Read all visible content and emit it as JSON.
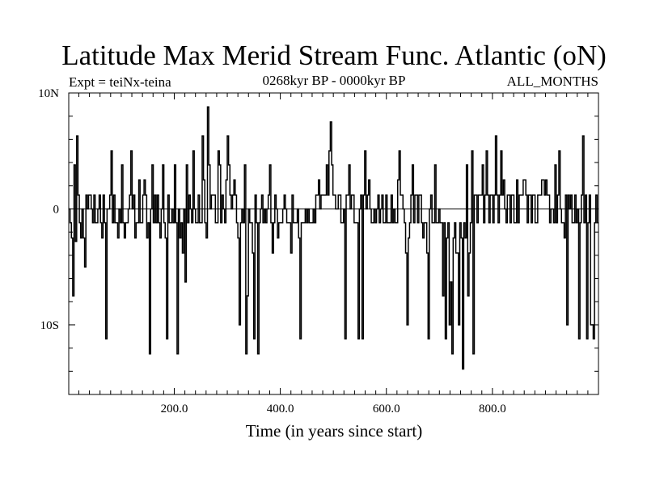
{
  "chart_data": {
    "type": "line",
    "title": "Latitude Max Merid Stream Func. Atlantic (oN)",
    "subtitle_left": "Expt = teiNx-teina",
    "subtitle_center": "0268kyr BP - 0000kyr BP",
    "subtitle_right": "ALL_MONTHS",
    "xlabel": "Time (in years since start)",
    "ylabel": "",
    "xlim": [
      1,
      1000
    ],
    "ylim": [
      -16,
      10
    ],
    "x_ticks": [
      200,
      400,
      600,
      800
    ],
    "x_tick_labels": [
      "200.0",
      "400.0",
      "600.0",
      "800.0"
    ],
    "y_ticks": [
      10,
      0,
      -10
    ],
    "y_tick_labels": [
      "10N",
      "0",
      "10S"
    ],
    "grid": false,
    "line_color": "#000000",
    "series": [
      {
        "values": [
          0,
          -1.2,
          -2.5,
          -7.5,
          3.8,
          -2.8,
          6.3,
          1.2,
          -1.2,
          -2.5,
          0,
          -2.5,
          -5,
          1.2,
          0,
          1.2,
          1.2,
          0,
          -1.2,
          1.2,
          -1.2,
          -1.2,
          0,
          1.2,
          -1.2,
          -2.5,
          1.2,
          -1.2,
          -11.2,
          0,
          0,
          1.2,
          5,
          -1.2,
          1.2,
          -1.2,
          -1.2,
          -2.5,
          0,
          -1.2,
          3.8,
          -1.2,
          -2.5,
          -1.2,
          -1.2,
          0,
          1.2,
          5,
          0,
          1.2,
          -2.5,
          -1.2,
          -1.2,
          2.5,
          -1.2,
          -1.2,
          1.2,
          2.5,
          1.2,
          -2.5,
          -1.2,
          -12.5,
          0,
          3.8,
          -1.2,
          1.2,
          -1.2,
          1.2,
          -1.2,
          -2.5,
          0,
          3.8,
          -1.2,
          -2.5,
          -11.2,
          1.2,
          -1.2,
          -1.2,
          0,
          -1.2,
          3.8,
          -1.2,
          -12.5,
          0,
          -2.5,
          -1.2,
          -3.8,
          0,
          -6.3,
          3.8,
          -1.2,
          1.2,
          0,
          -1.2,
          5,
          0,
          -1.2,
          -1.2,
          1.2,
          -1.2,
          -1.2,
          6.3,
          2.5,
          -1.2,
          -2.5,
          8.8,
          3.8,
          0,
          1.2,
          1.2,
          1.2,
          -1.2,
          -1.2,
          5,
          3.8,
          -1.2,
          1.2,
          0,
          -1.2,
          2.5,
          6.3,
          3.8,
          1.2,
          0,
          1.2,
          2.5,
          1.2,
          -1.2,
          -2.5,
          -10,
          -1.2,
          0,
          -1.2,
          3.8,
          -12.5,
          -7.5,
          0,
          -1.2,
          -1.2,
          -3.8,
          -11.2,
          1.2,
          -1.2,
          -12.5,
          -1.2,
          0,
          1.2,
          -1.2,
          0,
          -1.2,
          0,
          1.2,
          3.8,
          -1.2,
          -3.8,
          -1.2,
          1.2,
          0,
          -2.5,
          -1.2,
          -1.2,
          -1.2,
          0,
          1.2,
          0,
          -1.2,
          -1.2,
          -1.2,
          -3.8,
          1.2,
          -1.2,
          -1.2,
          -1.2,
          0,
          -2.5,
          -11.2,
          -1.2,
          -1.2,
          -1.2,
          0,
          -1.2,
          0,
          -1.2,
          -1.2,
          -1.2,
          0,
          -1.2,
          1.2,
          1.2,
          2.5,
          0,
          1.2,
          1.2,
          1.2,
          1.2,
          3.8,
          1.2,
          5,
          7.5,
          3.8,
          1.2,
          1.2,
          0,
          0,
          1.2,
          1.2,
          -1.2,
          -1.2,
          0,
          -11.2,
          1.2,
          1.2,
          3.8,
          0,
          1.2,
          1.2,
          -1.2,
          -1.2,
          -1.2,
          -11.2,
          0,
          1.2,
          -11.2,
          1.2,
          5,
          0,
          1.2,
          2.5,
          0,
          -1.2,
          -1.2,
          0,
          -1.2,
          0,
          1.2,
          -1.2,
          0,
          1.2,
          -1.2,
          -1.2,
          1.2,
          -1.2,
          -1.2,
          -1.2,
          1.2,
          -1.2,
          0,
          -1.2,
          -1.2,
          2.5,
          5,
          1.2,
          1.2,
          0,
          -1.2,
          -3.8,
          -10,
          -2.5,
          -1.2,
          1.2,
          3.8,
          -1.2,
          1.2,
          1.2,
          -1.2,
          1.2,
          1.2,
          -1.2,
          -2.5,
          -1.2,
          -1.2,
          -3.8,
          -11.2,
          0,
          1.2,
          -1.2,
          -1.2,
          3.8,
          -1.2,
          -1.2,
          0,
          -1.2,
          -1.2,
          -7.5,
          -1.2,
          -11.2,
          -2.5,
          -1.2,
          -10,
          -6.3,
          -12.5,
          -2.5,
          -1.2,
          -3.8,
          -3.8,
          -10,
          -1.2,
          -2.5,
          -13.8,
          -1.2,
          -2.5,
          3.8,
          -7.5,
          -3.8,
          -1.2,
          5,
          -12.5,
          1.2,
          1.2,
          -1.2,
          1.2,
          1.2,
          1.2,
          3.8,
          -1.2,
          1.2,
          5,
          1.2,
          -1.2,
          1.2,
          1.2,
          -1.2,
          1.2,
          6.3,
          1.2,
          -1.2,
          1.2,
          5,
          1.2,
          2.5,
          0,
          -1.2,
          1.2,
          1.2,
          -1.2,
          1.2,
          1.2,
          -1.2,
          -1.2,
          2.5,
          -1.2,
          1.2,
          1.2,
          1.2,
          2.5,
          2.5,
          1.2,
          -1.2,
          1.2,
          1.2,
          -1.2,
          1.2,
          1.2,
          -1.2,
          -1.2,
          1.2,
          1.2,
          1.2,
          2.5,
          2.5,
          1.2,
          2.5,
          1.2,
          1.2,
          -1.2,
          0,
          0,
          -1.2,
          3.8,
          -1.2,
          1.2,
          5,
          0,
          -1.2,
          -1.2,
          -2.5,
          1.2,
          -10,
          1.2,
          0,
          1.2,
          -1.2,
          -1.2,
          1.2,
          -1.2,
          0,
          -11.2,
          -1.2,
          1.2,
          6.3,
          -1.2,
          1.2,
          -11.2,
          -1.2,
          1.2,
          -10,
          -10,
          -11.2,
          -1.2,
          1.2,
          -1.2
        ],
        "step": 1
      }
    ]
  }
}
